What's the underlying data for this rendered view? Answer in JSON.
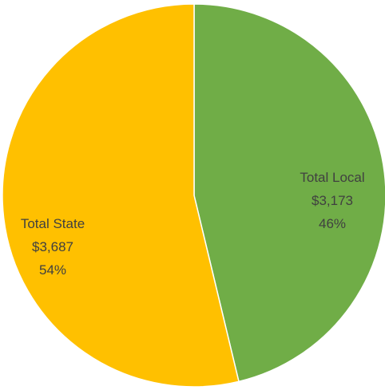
{
  "chart_data": {
    "type": "pie",
    "title": "",
    "slices": [
      {
        "label": "Total Local",
        "value_text": "$3,173",
        "percent_text": "46%",
        "value": 3173,
        "color": "#70AD47"
      },
      {
        "label": "Total State",
        "value_text": "$3,687",
        "percent_text": "54%",
        "value": 3687,
        "color": "#FFC000"
      }
    ],
    "start_angle_deg": 0,
    "direction": "clockwise",
    "legend": "none",
    "data_labels": "inside"
  }
}
